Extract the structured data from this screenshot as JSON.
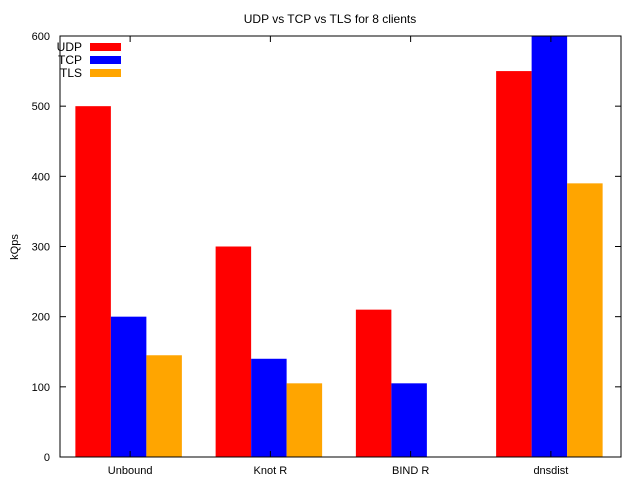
{
  "chart_data": {
    "type": "bar",
    "title": "UDP vs TCP vs TLS for 8 clients",
    "xlabel": "",
    "ylabel": "kQps",
    "ylim": [
      0,
      600
    ],
    "yticks": [
      0,
      100,
      200,
      300,
      400,
      500,
      600
    ],
    "categories": [
      "Unbound",
      "Knot R",
      "BIND R",
      "dnsdist"
    ],
    "series": [
      {
        "name": "UDP",
        "color": "#ff0000",
        "values": [
          500,
          300,
          210,
          550
        ]
      },
      {
        "name": "TCP",
        "color": "#0000ff",
        "values": [
          200,
          140,
          105,
          600
        ]
      },
      {
        "name": "TLS",
        "color": "#ffa500",
        "values": [
          145,
          105,
          0,
          390
        ]
      }
    ],
    "legend": {
      "position": "top-left"
    },
    "grid": false
  }
}
